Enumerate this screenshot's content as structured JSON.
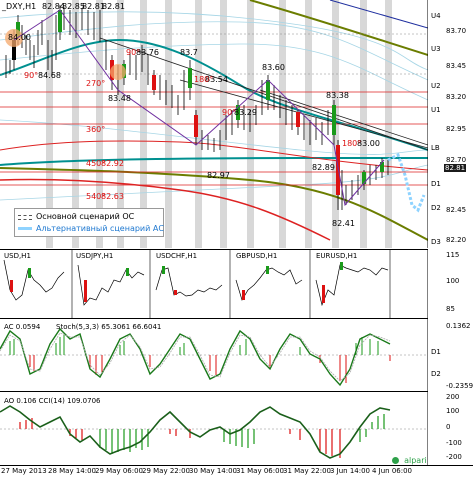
{
  "main": {
    "symbol_header": "_DXY,H1",
    "ohlc": [
      "82.84",
      "82.85",
      "82.81",
      "82.81"
    ],
    "price_labels": [
      "84.00",
      "84.68",
      "83.76",
      "83.7",
      "83.48",
      "83.54",
      "83.60",
      "83.29",
      "83.38",
      "83.00",
      "82.92",
      "82.97",
      "82.89",
      "82.63",
      "82.41"
    ],
    "angle_labels": [
      "90°",
      "90°",
      "270°",
      "180°",
      "90°",
      "360°",
      "180°",
      "450°",
      "540°"
    ],
    "right_levels": [
      "U4",
      "U3",
      "U2",
      "U1",
      "LB",
      "D1",
      "D2",
      "D3"
    ],
    "right_prices": [
      "83.70",
      "83.45",
      "83.20",
      "82.95",
      "82.70",
      "82.45",
      "82.20"
    ],
    "current_price": "82.81",
    "legend": {
      "base": "Основной сценарий ОС",
      "alt": "Альтернативный сценарий АС"
    },
    "colors": {
      "bull": "#1a9a1a",
      "bear": "#d11",
      "wick": "#000",
      "teal": "#009090",
      "olive": "#6b7d00",
      "red": "#dd2222"
    }
  },
  "cross": {
    "labels": [
      "USD,H1",
      "USDJPY,H1",
      "USDCHF,H1",
      "GBPUSD,H1",
      "EURUSD,H1"
    ],
    "right_axis": [
      "115",
      "100",
      "85"
    ]
  },
  "ac": {
    "header_ac": "AC 0.0594",
    "header_stoch": "Stoch(5,3,3) 65.3061 66.6041",
    "right_axis": [
      "0.1362",
      "D1",
      "D2",
      "-0.2359"
    ]
  },
  "ao": {
    "header": "AO 0.106 CCI(14) 109.0706",
    "right_axis": [
      "200",
      "100",
      "0",
      "-100",
      "-200"
    ],
    "brand": "alpari"
  },
  "dates": [
    "27 May 2013",
    "28 May 14:00",
    "29 May 06:00",
    "29 May 22:00",
    "30 May 14:00",
    "31 May 06:00",
    "31 May 22:00",
    "3 Jun 14:00",
    "4 Jun 06:00"
  ]
}
